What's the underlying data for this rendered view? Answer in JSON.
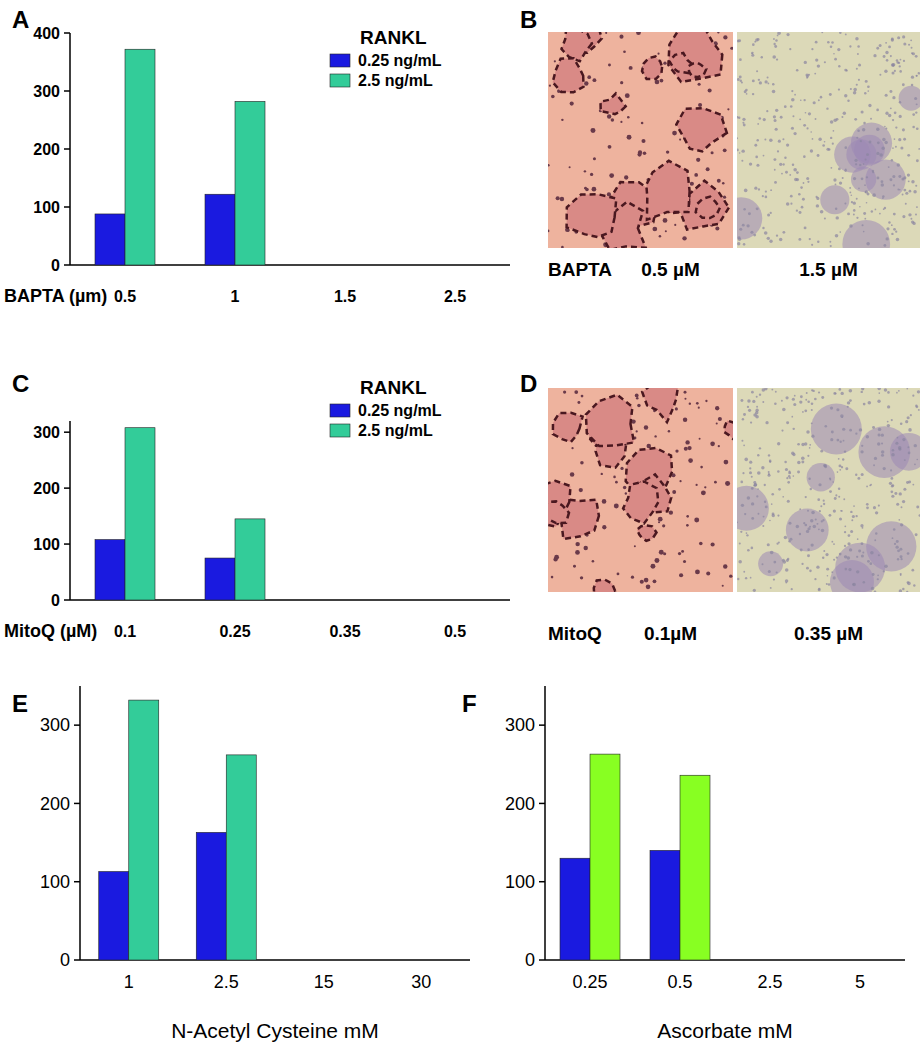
{
  "chart_data": [
    {
      "type": "bar",
      "panel": "A",
      "x_label": "BAPTA (µm)",
      "categories": [
        "0.5",
        "1",
        "1.5",
        "2.5"
      ],
      "legend_title": "RANKL",
      "legend": "upper right",
      "series": [
        {
          "name": "0.25 ng/mL",
          "color": "#1a1ae0",
          "values": [
            88,
            122,
            0,
            0
          ]
        },
        {
          "name": "2.5 ng/mL",
          "color": "#33cc99",
          "values": [
            372,
            282,
            0,
            0
          ]
        }
      ],
      "ylim": [
        0,
        400
      ],
      "yticks": [
        0,
        100,
        200,
        300,
        400
      ],
      "grid": false
    },
    {
      "type": "bar",
      "panel": "C",
      "x_label": "MitoQ (µM)",
      "categories": [
        "0.1",
        "0.25",
        "0.35",
        "0.5"
      ],
      "legend_title": "RANKL",
      "legend": "upper right",
      "series": [
        {
          "name": "0.25 ng/mL",
          "color": "#1a1ae0",
          "values": [
            108,
            75,
            0,
            0
          ]
        },
        {
          "name": "2.5 ng/mL",
          "color": "#33cc99",
          "values": [
            308,
            145,
            0,
            0
          ]
        }
      ],
      "ylim": [
        0,
        320
      ],
      "yticks": [
        0,
        100,
        200,
        300
      ],
      "grid": false
    },
    {
      "type": "bar",
      "panel": "E",
      "x_label": "N-Acetyl Cysteine mM",
      "categories": [
        "1",
        "2.5",
        "15",
        "30"
      ],
      "series": [
        {
          "color": "#1a1ae0",
          "values": [
            113,
            163,
            0,
            0
          ]
        },
        {
          "color": "#33cc99",
          "values": [
            332,
            262,
            0,
            0
          ]
        }
      ],
      "ylim": [
        0,
        350
      ],
      "yticks": [
        0,
        100,
        200,
        300
      ],
      "grid": false
    },
    {
      "type": "bar",
      "panel": "F",
      "x_label": "Ascorbate mM",
      "categories": [
        "0.25",
        "0.5",
        "2.5",
        "5"
      ],
      "series": [
        {
          "color": "#1a1ae0",
          "values": [
            130,
            140,
            0,
            0
          ]
        },
        {
          "color": "#88ff22",
          "values": [
            263,
            236,
            0,
            0
          ]
        }
      ],
      "ylim": [
        0,
        350
      ],
      "yticks": [
        0,
        100,
        200,
        300
      ],
      "grid": false
    }
  ],
  "images": [
    {
      "panel": "B",
      "label": "BAPTA",
      "captions": [
        "0.5 µM",
        "1.5 µM"
      ]
    },
    {
      "panel": "D",
      "label": "MitoQ",
      "captions": [
        "0.1µM",
        "0.35 µM"
      ]
    }
  ]
}
